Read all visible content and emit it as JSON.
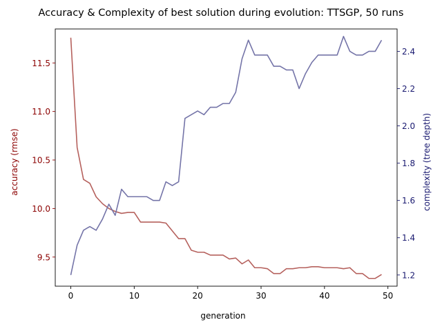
{
  "chart_data": {
    "type": "line",
    "title": "Accuracy & Complexity of best solution during evolution: TTSGP, 50 runs",
    "xlabel": "generation",
    "xlim": [
      -2.45,
      51.45
    ],
    "xticks": [
      0,
      10,
      20,
      30,
      40,
      50
    ],
    "x": [
      0,
      1,
      2,
      3,
      4,
      5,
      6,
      7,
      8,
      9,
      10,
      11,
      12,
      13,
      14,
      15,
      16,
      17,
      18,
      19,
      20,
      21,
      22,
      23,
      24,
      25,
      26,
      27,
      28,
      29,
      30,
      31,
      32,
      33,
      34,
      35,
      36,
      37,
      38,
      39,
      40,
      41,
      42,
      43,
      44,
      45,
      46,
      47,
      48,
      49
    ],
    "grid": false,
    "series": [
      {
        "axis": "left",
        "ylabel": "accuracy (rmse)",
        "ylim": [
          9.2,
          11.85
        ],
        "yticks": [
          "9.5",
          "10.0",
          "10.5",
          "11.0",
          "11.5"
        ],
        "line_color": "#b5605c",
        "axis_color": "#8b0000",
        "values": [
          11.76,
          10.63,
          10.3,
          10.26,
          10.12,
          10.05,
          10.0,
          9.97,
          9.95,
          9.96,
          9.96,
          9.86,
          9.86,
          9.86,
          9.86,
          9.85,
          9.77,
          9.69,
          9.69,
          9.57,
          9.55,
          9.55,
          9.52,
          9.52,
          9.52,
          9.48,
          9.49,
          9.43,
          9.47,
          9.39,
          9.39,
          9.38,
          9.33,
          9.33,
          9.38,
          9.38,
          9.39,
          9.39,
          9.4,
          9.4,
          9.39,
          9.39,
          9.39,
          9.38,
          9.39,
          9.33,
          9.33,
          9.28,
          9.28,
          9.32
        ]
      },
      {
        "axis": "right",
        "ylabel": "complexity (tree depth)",
        "ylim": [
          1.14,
          2.52
        ],
        "yticks": [
          "1.2",
          "1.4",
          "1.6",
          "1.8",
          "2.0",
          "2.2",
          "2.4"
        ],
        "line_color": "#7474a8",
        "axis_color": "#191970",
        "values": [
          1.2,
          1.36,
          1.44,
          1.46,
          1.44,
          1.5,
          1.58,
          1.52,
          1.66,
          1.62,
          1.62,
          1.62,
          1.62,
          1.6,
          1.6,
          1.7,
          1.68,
          1.7,
          2.04,
          2.06,
          2.08,
          2.06,
          2.1,
          2.1,
          2.12,
          2.12,
          2.18,
          2.36,
          2.46,
          2.38,
          2.38,
          2.38,
          2.32,
          2.32,
          2.3,
          2.3,
          2.2,
          2.28,
          2.34,
          2.38,
          2.38,
          2.38,
          2.38,
          2.48,
          2.4,
          2.38,
          2.38,
          2.4,
          2.4,
          2.46
        ]
      }
    ]
  }
}
